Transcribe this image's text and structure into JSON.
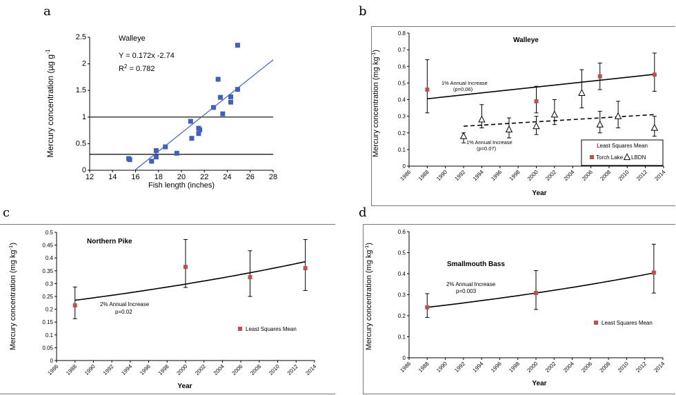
{
  "panels": [
    {
      "letter": "a"
    },
    {
      "letter": "b"
    },
    {
      "letter": "c"
    },
    {
      "letter": "d"
    }
  ],
  "colors": {
    "square_blue": "#4060c0",
    "fit_blue": "#4060c0",
    "red": "#c0504d",
    "black": "#000000"
  },
  "chart_data": [
    {
      "panel": "a",
      "type": "scatter",
      "title": "Walleye",
      "annotations": [
        "Y = 0.172x -2.74",
        "R",
        "2",
        " = 0.782"
      ],
      "xlabel": "Fish length (inches)",
      "ylabel": "Mercury concentration (µg g",
      "ylabel_sup": "-1",
      "xlim": [
        12,
        28
      ],
      "ylim": [
        0,
        2.5
      ],
      "xticks": [
        12,
        14,
        16,
        18,
        20,
        22,
        24,
        26,
        28
      ],
      "yticks": [
        0,
        0.5,
        1,
        1.5,
        2,
        2.5
      ],
      "xtick_labels": [
        "12",
        "14",
        "16",
        "18",
        "20",
        "22",
        "24",
        "26",
        "28"
      ],
      "ytick_labels": [
        "0",
        "0.5",
        "1",
        "1.5",
        "2",
        "2.5"
      ],
      "points": [
        [
          15.4,
          0.22
        ],
        [
          15.5,
          0.2
        ],
        [
          17.4,
          0.17
        ],
        [
          17.8,
          0.25
        ],
        [
          17.8,
          0.37
        ],
        [
          18.6,
          0.44
        ],
        [
          19.6,
          0.32
        ],
        [
          20.8,
          0.92
        ],
        [
          20.9,
          0.6
        ],
        [
          21.5,
          0.69
        ],
        [
          21.5,
          0.79
        ],
        [
          21.6,
          0.76
        ],
        [
          22.8,
          1.18
        ],
        [
          23.2,
          1.71
        ],
        [
          23.4,
          1.37
        ],
        [
          23.6,
          1.06
        ],
        [
          24.3,
          1.38
        ],
        [
          24.3,
          1.28
        ],
        [
          24.9,
          2.35
        ],
        [
          24.9,
          1.52
        ]
      ],
      "fit": {
        "slope": 0.172,
        "intercept": -2.74
      },
      "hlines": [
        1.0,
        0.3
      ]
    },
    {
      "panel": "b",
      "type": "scatter",
      "title": "Walleye",
      "xlabel": "Year",
      "ylabel": "Mercury concentration (mg kg",
      "ylabel_sup": "-1",
      "ylabel_close": ")",
      "xlim": [
        1986,
        2014
      ],
      "ylim": [
        0,
        0.8
      ],
      "xticks": [
        1986,
        1988,
        1990,
        1992,
        1994,
        1996,
        1998,
        2000,
        2002,
        2004,
        2006,
        2008,
        2010,
        2012,
        2014
      ],
      "yticks": [
        0,
        0.1,
        0.2,
        0.3,
        0.4,
        0.5,
        0.6,
        0.7,
        0.8
      ],
      "xtick_labels": [
        "1986",
        "1988",
        "1990",
        "1992",
        "1994",
        "1996",
        "1998",
        "2000",
        "2002",
        "2004",
        "2006",
        "2008",
        "2010",
        "2012",
        "2014"
      ],
      "ytick_labels": [
        "0",
        "0.1",
        "0.2",
        "0.3",
        "0.4",
        "0.5",
        "0.6",
        "0.7",
        "0.8"
      ],
      "series": [
        {
          "name": "Torch Lake",
          "marker": "square",
          "points": [
            {
              "x": 1988,
              "y": 0.46,
              "lo": 0.32,
              "hi": 0.64
            },
            {
              "x": 2000,
              "y": 0.39,
              "lo": 0.32,
              "hi": 0.48
            },
            {
              "x": 2007,
              "y": 0.54,
              "lo": 0.46,
              "hi": 0.62
            },
            {
              "x": 2013,
              "y": 0.55,
              "lo": 0.45,
              "hi": 0.68
            }
          ]
        },
        {
          "name": "LBDN",
          "marker": "triangle",
          "points": [
            {
              "x": 1992,
              "y": 0.18,
              "lo": 0.14,
              "hi": 0.2
            },
            {
              "x": 1994,
              "y": 0.28,
              "lo": 0.23,
              "hi": 0.37
            },
            {
              "x": 1997,
              "y": 0.22,
              "lo": 0.17,
              "hi": 0.29
            },
            {
              "x": 2000,
              "y": 0.24,
              "lo": 0.19,
              "hi": 0.3
            },
            {
              "x": 2002,
              "y": 0.31,
              "lo": 0.25,
              "hi": 0.4
            },
            {
              "x": 2005,
              "y": 0.44,
              "lo": 0.35,
              "hi": 0.58
            },
            {
              "x": 2007,
              "y": 0.25,
              "lo": 0.2,
              "hi": 0.33
            },
            {
              "x": 2009,
              "y": 0.3,
              "lo": 0.23,
              "hi": 0.39
            },
            {
              "x": 2013,
              "y": 0.23,
              "lo": 0.18,
              "hi": 0.3
            }
          ]
        }
      ],
      "trends": [
        {
          "style": "solid",
          "x1": 1988,
          "y1": 0.405,
          "x2": 2013,
          "y2": 0.552
        },
        {
          "style": "dashed",
          "x1": 1992,
          "y1": 0.24,
          "x2": 2013,
          "y2": 0.31
        }
      ],
      "annotations": [
        "1% Annual Increase",
        "(p=0.06)",
        "1% Annual Increase",
        "(p=0.07)"
      ],
      "legend": {
        "title": "Least Squares Mean",
        "position": "bottom-right",
        "entries": [
          "Torch Lake",
          "LBDN"
        ]
      }
    },
    {
      "panel": "c",
      "type": "scatter",
      "title": "Northern Pike",
      "xlabel": "Year",
      "ylabel": "Mercury concentration (mg kg",
      "ylabel_sup": "-1",
      "ylabel_close": ")",
      "xlim": [
        1986,
        2014
      ],
      "ylim": [
        0,
        0.5
      ],
      "xticks": [
        1986,
        1988,
        1990,
        1992,
        1994,
        1996,
        1998,
        2000,
        2002,
        2004,
        2006,
        2008,
        2010,
        2012,
        2014
      ],
      "yticks": [
        0,
        0.05,
        0.1,
        0.15,
        0.2,
        0.25,
        0.3,
        0.35,
        0.4,
        0.45,
        0.5
      ],
      "xtick_labels": [
        "1986",
        "1988",
        "1990",
        "1992",
        "1994",
        "1996",
        "1998",
        "2000",
        "2002",
        "2004",
        "2006",
        "2008",
        "2010",
        "2012",
        "2014"
      ],
      "ytick_labels": [
        "0",
        "0.05",
        "0.1",
        "0.15",
        "0.2",
        "0.25",
        "0.3",
        "0.35",
        "0.4",
        "0.45",
        "0.5"
      ],
      "series": [
        {
          "name": "Least Squares Mean",
          "marker": "square",
          "points": [
            {
              "x": 1988,
              "y": 0.215,
              "lo": 0.163,
              "hi": 0.287
            },
            {
              "x": 2000,
              "y": 0.365,
              "lo": 0.285,
              "hi": 0.472
            },
            {
              "x": 2007,
              "y": 0.325,
              "lo": 0.25,
              "hi": 0.428
            },
            {
              "x": 2013,
              "y": 0.36,
              "lo": 0.273,
              "hi": 0.472
            }
          ]
        }
      ],
      "trend_curve": {
        "x1": 1988,
        "x2": 2013,
        "y1": 0.235,
        "rate": 0.02
      },
      "annotations": [
        "2% Annual Increase",
        "p=0.02"
      ],
      "legend": {
        "position": "right",
        "entries": [
          "Least Squares Mean"
        ]
      }
    },
    {
      "panel": "d",
      "type": "scatter",
      "title": "Smallmouth Bass",
      "xlabel": "Year",
      "ylabel": "Mercury concentration (mg kg",
      "ylabel_sup": "-1",
      "ylabel_close": ")",
      "xlim": [
        1986,
        2014
      ],
      "ylim": [
        0,
        0.6
      ],
      "xticks": [
        1986,
        1988,
        1990,
        1992,
        1994,
        1996,
        1998,
        2000,
        2002,
        2004,
        2006,
        2008,
        2010,
        2012,
        2014
      ],
      "yticks": [
        0,
        0.1,
        0.2,
        0.3,
        0.4,
        0.5,
        0.6
      ],
      "xtick_labels": [
        "1986",
        "1988",
        "1990",
        "1992",
        "1994",
        "1996",
        "1998",
        "2000",
        "2002",
        "2004",
        "2006",
        "2008",
        "2010",
        "2012",
        "2014"
      ],
      "ytick_labels": [
        "0",
        "0.1",
        "0.2",
        "0.3",
        "0.4",
        "0.5",
        "0.6"
      ],
      "series": [
        {
          "name": "Least Squares Mean",
          "marker": "square",
          "points": [
            {
              "x": 1988,
              "y": 0.24,
              "lo": 0.192,
              "hi": 0.305
            },
            {
              "x": 2000,
              "y": 0.308,
              "lo": 0.23,
              "hi": 0.415
            },
            {
              "x": 2013,
              "y": 0.405,
              "lo": 0.308,
              "hi": 0.54
            }
          ]
        }
      ],
      "trend_curve": {
        "x1": 1988,
        "x2": 2013,
        "y1": 0.24,
        "rate": 0.021
      },
      "annotations": [
        "2% Annual Increase",
        "p=0.003"
      ],
      "legend": {
        "position": "right",
        "entries": [
          "Least Squares Mean"
        ]
      }
    }
  ]
}
